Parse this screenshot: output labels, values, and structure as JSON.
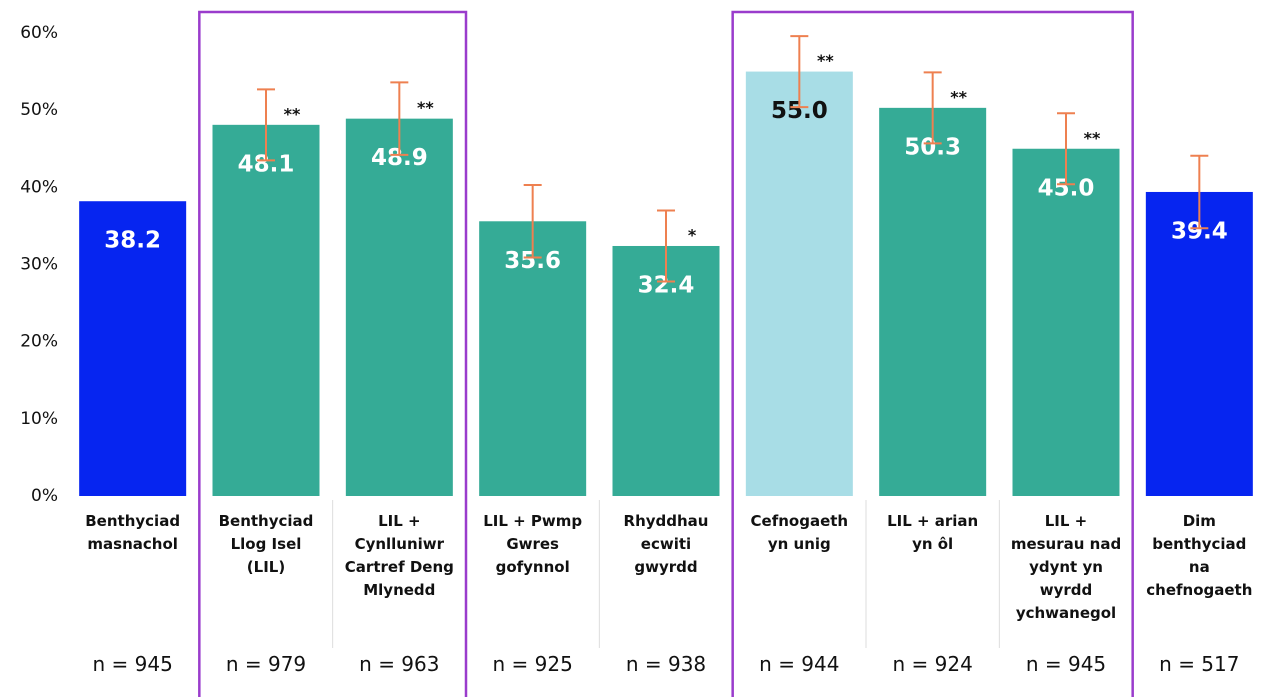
{
  "chart_data": {
    "type": "bar",
    "categories": [
      "Benthyciad\nmasnachol",
      "Benthyciad\nLlog Isel\n(LIL)",
      "LIL +\nCynlluniwr\nCartref Deng\nMlynedd",
      "LIL + Pwmp\nGwres\ngofynnol",
      "Rhyddhau\necwiti\ngwyrdd",
      "Cefnogaeth\nyn unig",
      "LIL + arian\nyn ôl",
      "LIL +\nmesurau nad\nydynt yn\nwyrdd\nychwanegol",
      "Dim\nbenthyciad\nna\nchefnogaeth"
    ],
    "values": [
      38.2,
      48.1,
      48.9,
      35.6,
      32.4,
      55.0,
      50.3,
      45.0,
      39.4
    ],
    "value_labels": [
      "38.2",
      "48.1",
      "48.9",
      "35.6",
      "32.4",
      "55.0",
      "50.3",
      "45.0",
      "39.4"
    ],
    "errors": [
      null,
      4.6,
      4.7,
      4.7,
      4.6,
      4.6,
      4.6,
      4.6,
      4.7
    ],
    "significance": [
      null,
      "**",
      "**",
      null,
      "*",
      "**",
      "**",
      "**",
      null
    ],
    "n_labels": [
      "n = 945",
      "n = 979",
      "n = 963",
      "n = 925",
      "n = 938",
      "n = 944",
      "n = 924",
      "n = 945",
      "n = 517"
    ],
    "colors": [
      "#0625f0",
      "#35ab96",
      "#35ab96",
      "#35ab96",
      "#35ab96",
      "#a8dde6",
      "#35ab96",
      "#35ab96",
      "#0625f0"
    ],
    "label_colors": [
      "#ffffff",
      "#ffffff",
      "#ffffff",
      "#ffffff",
      "#ffffff",
      "#111111",
      "#ffffff",
      "#ffffff",
      "#ffffff"
    ],
    "error_color": "#ee8050",
    "highlight_boxes": [
      {
        "from": 1,
        "to": 2
      },
      {
        "from": 5,
        "to": 7
      }
    ],
    "highlight_color": "#9a3ccc",
    "ylim": [
      0,
      60
    ],
    "yticks": [
      {
        "value": 0,
        "label": "0%"
      },
      {
        "value": 10,
        "label": "10%"
      },
      {
        "value": 20,
        "label": "20%"
      },
      {
        "value": 30,
        "label": "30%"
      },
      {
        "value": 40,
        "label": "40%"
      },
      {
        "value": 50,
        "label": "50%"
      },
      {
        "value": 60,
        "label": "60%"
      }
    ],
    "grid": false
  }
}
